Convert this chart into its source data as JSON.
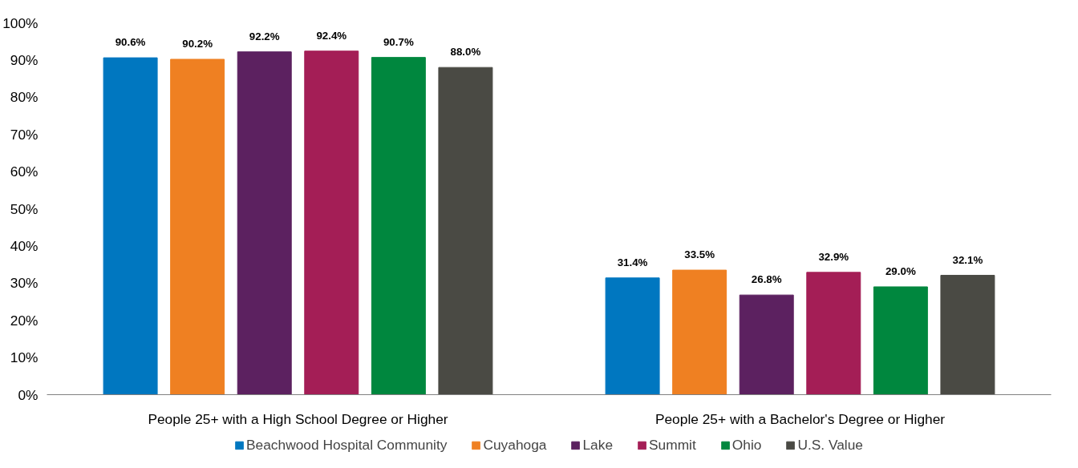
{
  "chart_data": {
    "type": "bar",
    "categories": [
      "People 25+ with a High School Degree or Higher",
      "People 25+ with a Bachelor's Degree or Higher"
    ],
    "series": [
      {
        "name": "Beachwood Hospital Community",
        "color": "#0077c0",
        "values": [
          90.6,
          31.4
        ],
        "value_labels": [
          "90.6%",
          "31.4%"
        ]
      },
      {
        "name": "Cuyahoga",
        "color": "#ef8022",
        "values": [
          90.2,
          33.5
        ],
        "value_labels": [
          "90.2%",
          "33.5%"
        ]
      },
      {
        "name": "Lake",
        "color": "#5c2160",
        "values": [
          92.2,
          26.8
        ],
        "value_labels": [
          "92.2%",
          "26.8%"
        ]
      },
      {
        "name": "Summit",
        "color": "#a41e56",
        "values": [
          92.4,
          32.9
        ],
        "value_labels": [
          "92.4%",
          "32.9%"
        ]
      },
      {
        "name": "Ohio",
        "color": "#00873e",
        "values": [
          90.7,
          29.0
        ],
        "value_labels": [
          "90.7%",
          "29.0%"
        ]
      },
      {
        "name": "U.S. Value",
        "color": "#4a4a44",
        "values": [
          88.0,
          32.1
        ],
        "value_labels": [
          "88.0%",
          "32.1%"
        ]
      }
    ],
    "ylim": [
      0,
      100
    ],
    "yticks": [
      {
        "value": 0,
        "label": "0%"
      },
      {
        "value": 10,
        "label": "10%"
      },
      {
        "value": 20,
        "label": "20%"
      },
      {
        "value": 30,
        "label": "30%"
      },
      {
        "value": 40,
        "label": "40%"
      },
      {
        "value": 50,
        "label": "50%"
      },
      {
        "value": 60,
        "label": "60%"
      },
      {
        "value": 70,
        "label": "70%"
      },
      {
        "value": 80,
        "label": "80%"
      },
      {
        "value": 90,
        "label": "90%"
      },
      {
        "value": 100,
        "label": "100%"
      }
    ],
    "grid": false,
    "legend": "bottom"
  }
}
